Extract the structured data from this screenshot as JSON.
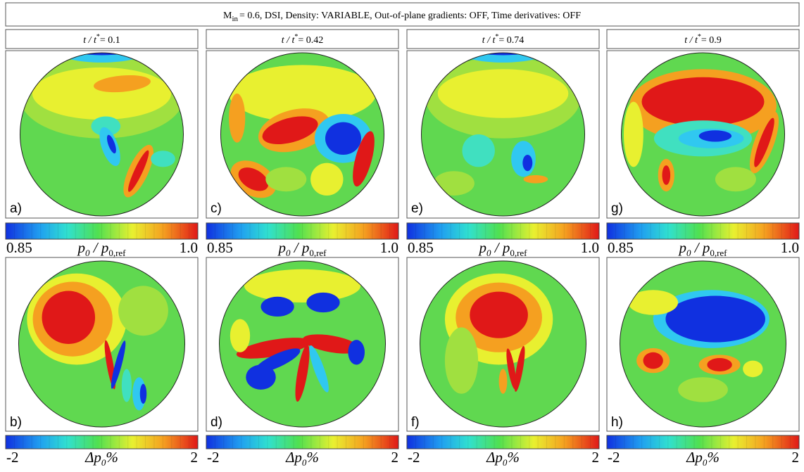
{
  "header": {
    "title_main": "M",
    "title_sub": "in",
    "title_rest": "= 0.6, DSI, Density: VARIABLE, Out-of-plane gradients: OFF, Time derivatives: OFF"
  },
  "time_label": {
    "var": "t / t",
    "sup": "*"
  },
  "columns": [
    {
      "time": "= 0.1",
      "top_label": "a)",
      "bottom_label": "b)"
    },
    {
      "time": "= 0.42",
      "top_label": "c)",
      "bottom_label": "d)"
    },
    {
      "time": "= 0.74",
      "top_label": "e)",
      "bottom_label": "f)"
    },
    {
      "time": "= 0.9",
      "top_label": "g)",
      "bottom_label": "h)"
    }
  ],
  "top_colorbar": {
    "min": "0.85",
    "max": "1.0",
    "label_a": "p",
    "label_a_sub": "0",
    "label_b": " / p",
    "label_b_sub": "0,ref"
  },
  "bottom_colorbar": {
    "min": "-2",
    "max": "2",
    "label": "Δp",
    "label_sub": "0",
    "label_rest": "%"
  }
}
